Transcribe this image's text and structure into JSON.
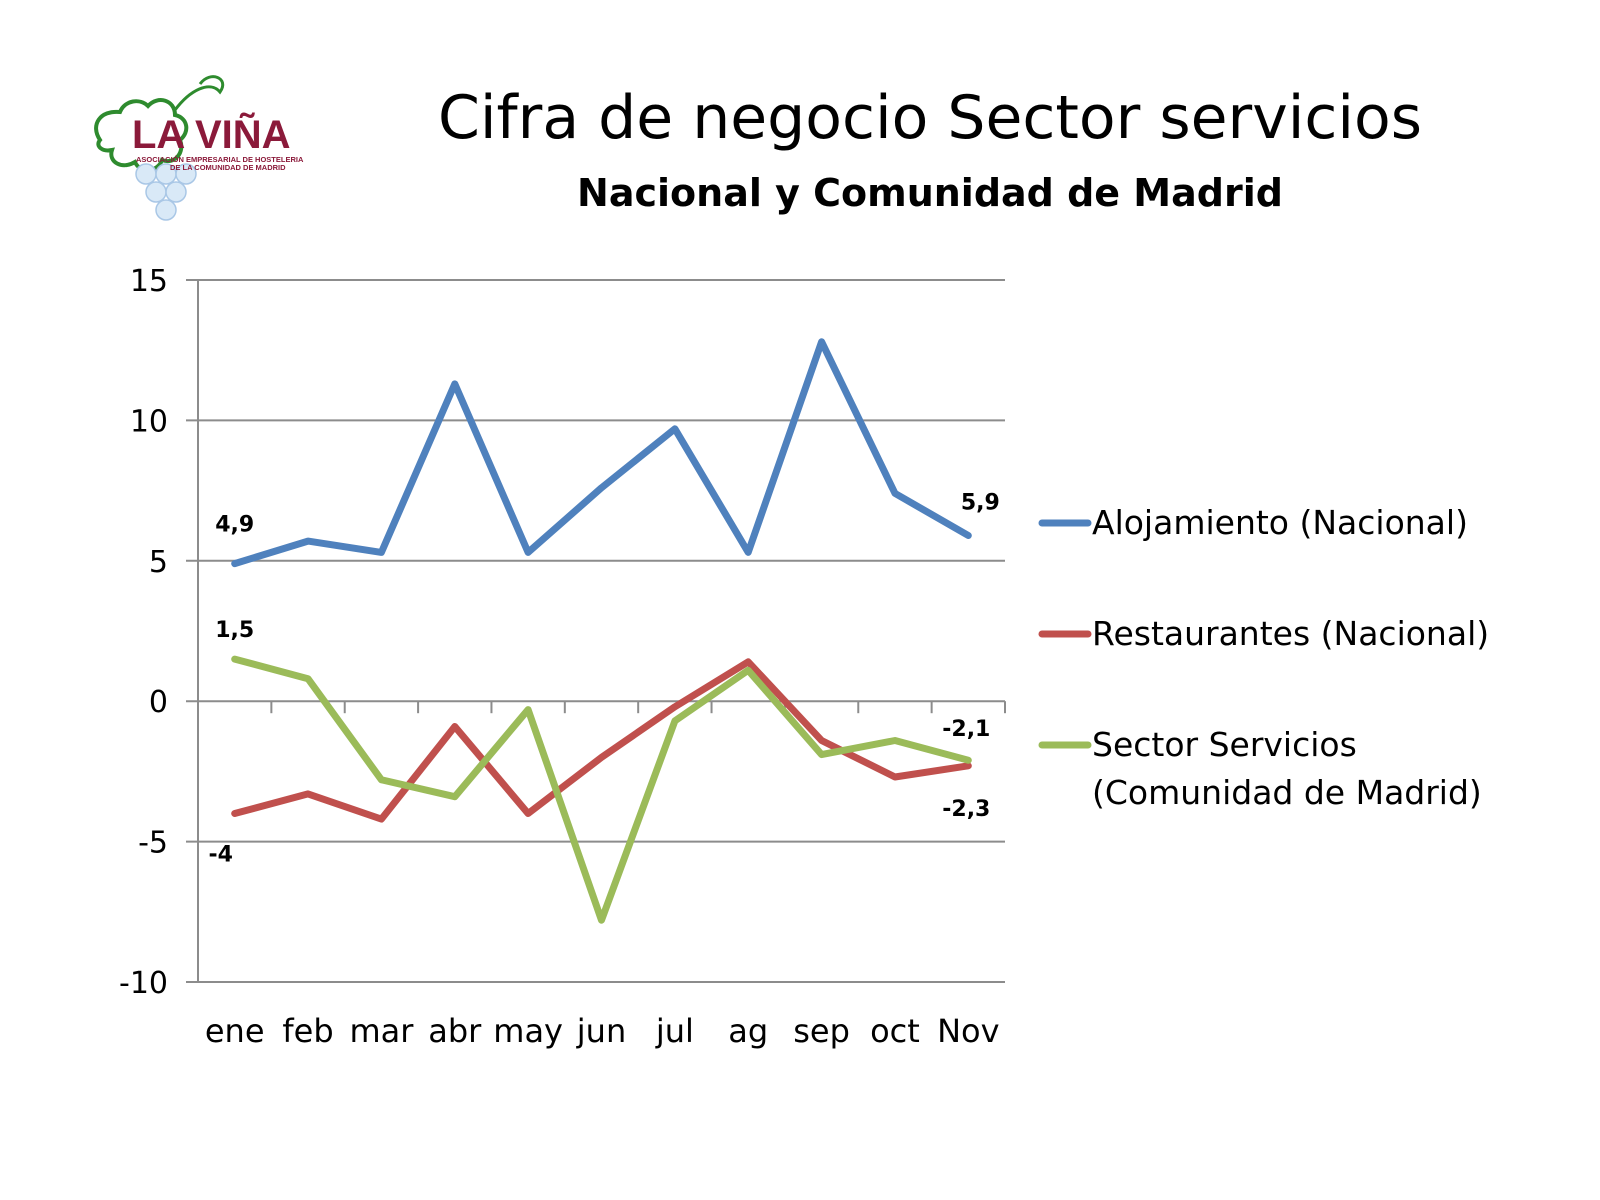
{
  "logo": {
    "text": "LA VIÑA",
    "tagline_1": "ASOCIACIÓN EMPRESARIAL DE HOSTELERIA",
    "tagline_2": "DE LA COMUNIDAD DE MADRID"
  },
  "chart_data": {
    "type": "line",
    "title": "Cifra de negocio Sector servicios",
    "subtitle": "Nacional y Comunidad de Madrid",
    "categories": [
      "ene",
      "feb",
      "mar",
      "abr",
      "may",
      "jun",
      "jul",
      "ag",
      "sep",
      "oct",
      "Nov"
    ],
    "ylim": [
      -10,
      15
    ],
    "yticks": [
      15,
      10,
      5,
      0,
      -5,
      -10
    ],
    "ytick_labels": [
      "15",
      "10",
      "5",
      "0",
      "-5",
      "-10"
    ],
    "grid": true,
    "legend_position": "right",
    "series": [
      {
        "name": "Alojamiento (Nacional)",
        "color": "#4F81BD",
        "values": [
          4.9,
          5.7,
          5.3,
          11.3,
          5.3,
          7.6,
          9.7,
          5.3,
          12.8,
          7.4,
          5.9
        ]
      },
      {
        "name": "Restaurantes (Nacional)",
        "color": "#C0504D",
        "values": [
          -4.0,
          -3.3,
          -4.2,
          -0.9,
          -4.0,
          -2.0,
          -0.2,
          1.4,
          -1.4,
          -2.7,
          -2.3
        ]
      },
      {
        "name": "Sector Servicios (Comunidad de Madrid)",
        "legend_lines": [
          "Sector Servicios",
          "(Comunidad de Madrid)"
        ],
        "color": "#9BBB59",
        "values": [
          1.5,
          0.8,
          -2.8,
          -3.4,
          -0.3,
          -7.8,
          -0.7,
          1.1,
          -1.9,
          -1.4,
          -2.1
        ]
      }
    ],
    "data_labels": [
      {
        "series": 0,
        "index": 0,
        "text": "4,9"
      },
      {
        "series": 0,
        "index": 10,
        "text": "5,9"
      },
      {
        "series": 2,
        "index": 0,
        "text": "1,5"
      },
      {
        "series": 1,
        "index": 0,
        "text": "-4"
      },
      {
        "series": 2,
        "index": 10,
        "text": "-2,1"
      },
      {
        "series": 1,
        "index": 10,
        "text": "-2,3"
      }
    ]
  }
}
